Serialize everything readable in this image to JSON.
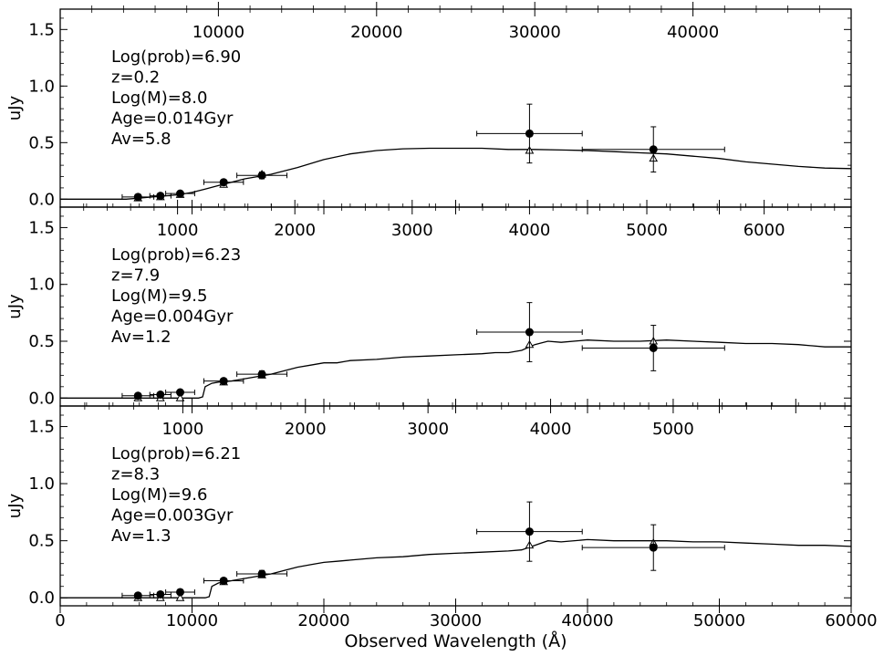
{
  "chart_data": {
    "type": "line",
    "xlabel": "Observed Wavelength (Å)",
    "xlim": [
      0,
      60000
    ],
    "xticks": [
      0,
      10000,
      20000,
      30000,
      40000,
      50000,
      60000
    ],
    "panels": [
      {
        "ylabel": "uJy",
        "ylim": [
          -0.07,
          1.68
        ],
        "yticks": [
          0.0,
          0.5,
          1.0,
          1.5
        ],
        "top_axis_ticks": [
          10000,
          20000,
          30000,
          40000
        ],
        "top_axis_scale": 1.2,
        "annotations": [
          "Log(prob)=6.90",
          "z=0.2",
          "Log(M)=8.0",
          "Age=0.014Gyr",
          "Av=5.8"
        ],
        "model_spectrum": {
          "x": [
            0,
            5000,
            6000,
            7000,
            8000,
            9000,
            10000,
            11000,
            12000,
            13000,
            14000,
            15000,
            16000,
            18000,
            20000,
            22000,
            24000,
            26000,
            28000,
            30000,
            32000,
            34000,
            36000,
            38000,
            40000,
            42000,
            44000,
            46000,
            48000,
            50000,
            52000,
            54000,
            56000,
            58000,
            60000
          ],
          "y": [
            0.0,
            0.0,
            0.01,
            0.02,
            0.03,
            0.04,
            0.06,
            0.09,
            0.12,
            0.15,
            0.18,
            0.2,
            0.22,
            0.28,
            0.35,
            0.4,
            0.43,
            0.445,
            0.45,
            0.45,
            0.45,
            0.44,
            0.44,
            0.435,
            0.43,
            0.42,
            0.41,
            0.4,
            0.38,
            0.36,
            0.33,
            0.31,
            0.29,
            0.275,
            0.27
          ]
        },
        "model_photometry": {
          "x": [
            5900,
            7600,
            9100,
            12400,
            15300,
            35600,
            45000
          ],
          "y": [
            0.01,
            0.02,
            0.04,
            0.13,
            0.22,
            0.43,
            0.36
          ]
        },
        "observed": [
          {
            "x": 5900,
            "y": 0.02,
            "xerr": 1200,
            "yerr": 0.02
          },
          {
            "x": 7600,
            "y": 0.03,
            "xerr": 800,
            "yerr": 0.02
          },
          {
            "x": 9100,
            "y": 0.05,
            "xerr": 1100,
            "yerr": 0.02
          },
          {
            "x": 12400,
            "y": 0.15,
            "xerr": 1500,
            "yerr": 0.02
          },
          {
            "x": 15300,
            "y": 0.21,
            "xerr": 1900,
            "yerr": 0.03
          },
          {
            "x": 35600,
            "y": 0.58,
            "xerr": 4000,
            "yerr": 0.26
          },
          {
            "x": 45000,
            "y": 0.44,
            "xerr": 5400,
            "yerr": 0.2
          }
        ]
      },
      {
        "ylabel": "uJy",
        "ylim": [
          -0.07,
          1.68
        ],
        "yticks": [
          0.0,
          0.5,
          1.0,
          1.5
        ],
        "top_axis_ticks": [
          1000,
          2000,
          3000,
          4000,
          5000,
          6000
        ],
        "top_axis_scale": 8.9,
        "annotations": [
          "Log(prob)=6.23",
          "z=7.9",
          "Log(M)=9.5",
          "Age=0.004Gyr",
          "Av=1.2"
        ],
        "model_spectrum": {
          "x": [
            0,
            10500,
            10800,
            11000,
            11500,
            12000,
            13000,
            14000,
            15000,
            16000,
            17000,
            18000,
            19000,
            20000,
            21000,
            22000,
            24000,
            26000,
            28000,
            30000,
            32000,
            33000,
            34000,
            35000,
            36000,
            37000,
            38000,
            40000,
            42000,
            44000,
            46000,
            48000,
            50000,
            52000,
            54000,
            56000,
            58000,
            60000
          ],
          "y": [
            0.0,
            0.0,
            0.01,
            0.1,
            0.13,
            0.14,
            0.15,
            0.17,
            0.19,
            0.21,
            0.24,
            0.27,
            0.29,
            0.31,
            0.31,
            0.33,
            0.34,
            0.36,
            0.37,
            0.38,
            0.39,
            0.4,
            0.4,
            0.42,
            0.47,
            0.5,
            0.49,
            0.51,
            0.5,
            0.5,
            0.51,
            0.5,
            0.49,
            0.48,
            0.48,
            0.47,
            0.45,
            0.45
          ]
        },
        "model_photometry": {
          "x": [
            5900,
            7600,
            9100,
            12400,
            15300,
            35600,
            45000
          ],
          "y": [
            0.0,
            0.0,
            0.0,
            0.14,
            0.2,
            0.47,
            0.5
          ]
        },
        "observed": [
          {
            "x": 5900,
            "y": 0.02,
            "xerr": 1200,
            "yerr": 0.02
          },
          {
            "x": 7600,
            "y": 0.03,
            "xerr": 800,
            "yerr": 0.02
          },
          {
            "x": 9100,
            "y": 0.05,
            "xerr": 1100,
            "yerr": 0.02
          },
          {
            "x": 12400,
            "y": 0.15,
            "xerr": 1500,
            "yerr": 0.02
          },
          {
            "x": 15300,
            "y": 0.21,
            "xerr": 1900,
            "yerr": 0.03
          },
          {
            "x": 35600,
            "y": 0.58,
            "xerr": 4000,
            "yerr": 0.26
          },
          {
            "x": 45000,
            "y": 0.44,
            "xerr": 5400,
            "yerr": 0.2
          }
        ]
      },
      {
        "ylabel": "uJy",
        "ylim": [
          -0.07,
          1.68
        ],
        "yticks": [
          0.0,
          0.5,
          1.0,
          1.5
        ],
        "top_axis_ticks": [
          1000,
          2000,
          3000,
          4000,
          5000
        ],
        "top_axis_scale": 9.3,
        "annotations": [
          "Log(prob)=6.21",
          "z=8.3",
          "Log(M)=9.6",
          "Age=0.003Gyr",
          "Av=1.3"
        ],
        "model_spectrum": {
          "x": [
            0,
            11000,
            11300,
            11500,
            12000,
            12500,
            13000,
            14000,
            15000,
            16000,
            17000,
            18000,
            19000,
            20000,
            21000,
            22000,
            24000,
            26000,
            28000,
            30000,
            32000,
            34000,
            35000,
            36000,
            37000,
            38000,
            40000,
            42000,
            44000,
            46000,
            48000,
            50000,
            52000,
            54000,
            56000,
            58000,
            60000
          ],
          "y": [
            0.0,
            0.0,
            0.01,
            0.1,
            0.13,
            0.14,
            0.15,
            0.17,
            0.19,
            0.21,
            0.24,
            0.27,
            0.29,
            0.31,
            0.32,
            0.33,
            0.35,
            0.36,
            0.38,
            0.39,
            0.4,
            0.41,
            0.42,
            0.46,
            0.5,
            0.49,
            0.51,
            0.5,
            0.5,
            0.5,
            0.49,
            0.49,
            0.48,
            0.47,
            0.46,
            0.46,
            0.45
          ]
        },
        "model_photometry": {
          "x": [
            5900,
            7600,
            9100,
            12400,
            15300,
            35600,
            45000
          ],
          "y": [
            0.0,
            0.0,
            0.0,
            0.14,
            0.2,
            0.46,
            0.48
          ]
        },
        "observed": [
          {
            "x": 5900,
            "y": 0.02,
            "xerr": 1200,
            "yerr": 0.02
          },
          {
            "x": 7600,
            "y": 0.03,
            "xerr": 800,
            "yerr": 0.02
          },
          {
            "x": 9100,
            "y": 0.05,
            "xerr": 1100,
            "yerr": 0.02
          },
          {
            "x": 12400,
            "y": 0.15,
            "xerr": 1500,
            "yerr": 0.02
          },
          {
            "x": 15300,
            "y": 0.21,
            "xerr": 1900,
            "yerr": 0.03
          },
          {
            "x": 35600,
            "y": 0.58,
            "xerr": 4000,
            "yerr": 0.26
          },
          {
            "x": 45000,
            "y": 0.44,
            "xerr": 5400,
            "yerr": 0.2
          }
        ]
      }
    ]
  }
}
